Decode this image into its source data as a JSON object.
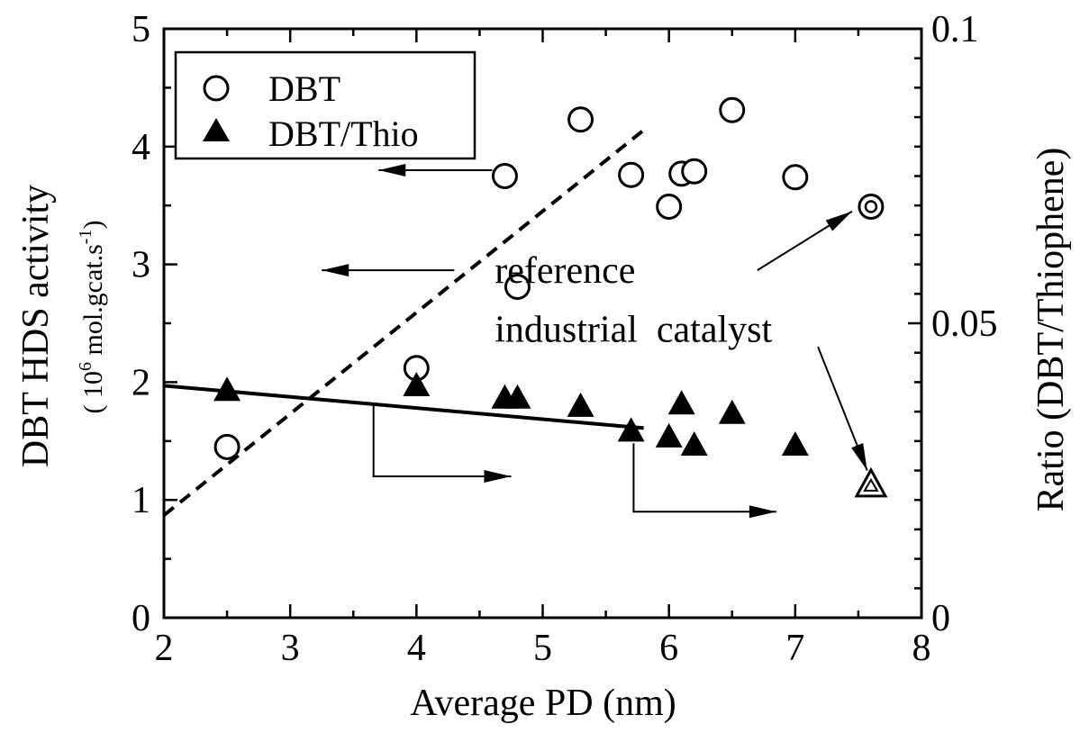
{
  "chart_data": {
    "type": "scatter",
    "xlabel": "Average PD (nm)",
    "ylabel": "DBT HDS activity",
    "ylabel_units": {
      "prefix": "( 10",
      "exp": "6",
      "mid": " mol.gcat.s",
      "exp2": "-1",
      "suffix": ")"
    },
    "y2label": "Ratio (DBT/Thiophene)",
    "xlim": [
      2,
      8
    ],
    "ylim": [
      0,
      5
    ],
    "y2lim": [
      0,
      0.1
    ],
    "xticks": [
      "2",
      "3",
      "4",
      "5",
      "6",
      "7",
      "8"
    ],
    "yticks": [
      "0",
      "1",
      "2",
      "3",
      "4",
      "5"
    ],
    "y2ticks": [
      "0",
      "0.05",
      "0.1"
    ],
    "grid": false,
    "legend_position": "top-left",
    "legend": [
      {
        "marker": "open-circle",
        "label": "DBT"
      },
      {
        "marker": "filled-triangle",
        "label": "DBT/Thio"
      }
    ],
    "series": [
      {
        "name": "DBT",
        "axis": "left",
        "marker": "open-circle",
        "points": [
          {
            "x": 2.5,
            "y": 1.45
          },
          {
            "x": 4.0,
            "y": 2.12
          },
          {
            "x": 4.7,
            "y": 3.75
          },
          {
            "x": 4.8,
            "y": 2.81
          },
          {
            "x": 5.3,
            "y": 4.23
          },
          {
            "x": 5.7,
            "y": 3.76
          },
          {
            "x": 6.0,
            "y": 3.49
          },
          {
            "x": 6.1,
            "y": 3.77
          },
          {
            "x": 6.2,
            "y": 3.79
          },
          {
            "x": 6.5,
            "y": 4.31
          },
          {
            "x": 7.0,
            "y": 3.74
          }
        ]
      },
      {
        "name": "DBT/Thio",
        "axis": "right",
        "marker": "filled-triangle",
        "points": [
          {
            "x": 2.5,
            "y": 0.0385
          },
          {
            "x": 4.0,
            "y": 0.0393
          },
          {
            "x": 4.7,
            "y": 0.0372
          },
          {
            "x": 4.8,
            "y": 0.0372
          },
          {
            "x": 5.3,
            "y": 0.0358
          },
          {
            "x": 5.7,
            "y": 0.0316
          },
          {
            "x": 6.0,
            "y": 0.0306
          },
          {
            "x": 6.1,
            "y": 0.0362
          },
          {
            "x": 6.2,
            "y": 0.0292
          },
          {
            "x": 6.5,
            "y": 0.0346
          },
          {
            "x": 7.0,
            "y": 0.0292
          }
        ]
      },
      {
        "marker": "double-circle",
        "axis": "left",
        "points": [
          {
            "x": 7.6,
            "y": 3.49
          }
        ]
      },
      {
        "marker": "double-triangle",
        "axis": "right",
        "points": [
          {
            "x": 7.6,
            "y": 0.0225
          }
        ]
      }
    ],
    "trendlines": [
      {
        "style": "dashed",
        "axis": "left",
        "from": {
          "x": 2.0,
          "y": 0.87
        },
        "to": {
          "x": 5.8,
          "y": 4.14
        }
      },
      {
        "style": "solid",
        "axis": "left",
        "from": {
          "x": 2.0,
          "y": 1.97
        },
        "to": {
          "x": 5.8,
          "y": 1.61
        }
      }
    ],
    "arrows": [
      {
        "axis": "left",
        "from": {
          "x": 4.6,
          "y": 3.8
        },
        "to": {
          "x": 3.7,
          "y": 3.8
        }
      },
      {
        "axis": "left",
        "from": {
          "x": 4.3,
          "y": 2.95
        },
        "to": {
          "x": 3.25,
          "y": 2.95
        }
      },
      {
        "axis": "left",
        "path": [
          {
            "x": 3.66,
            "y": 1.8
          },
          {
            "x": 3.66,
            "y": 1.2
          },
          {
            "x": 4.75,
            "y": 1.2
          }
        ]
      },
      {
        "axis": "left",
        "path": [
          {
            "x": 5.72,
            "y": 1.48
          },
          {
            "x": 5.72,
            "y": 0.9
          },
          {
            "x": 6.85,
            "y": 0.9
          }
        ]
      },
      {
        "axis": "left",
        "from": {
          "x": 6.7,
          "y": 2.95
        },
        "to": {
          "x": 7.45,
          "y": 3.45
        }
      },
      {
        "axis": "left",
        "from": {
          "x": 7.18,
          "y": 2.3
        },
        "to": {
          "x": 7.57,
          "y": 1.25
        }
      }
    ],
    "annotations": [
      {
        "text": "reference",
        "x": 4.62,
        "y": 2.95
      },
      {
        "text": "industrial  catalyst",
        "x": 4.62,
        "y": 2.45
      }
    ]
  }
}
